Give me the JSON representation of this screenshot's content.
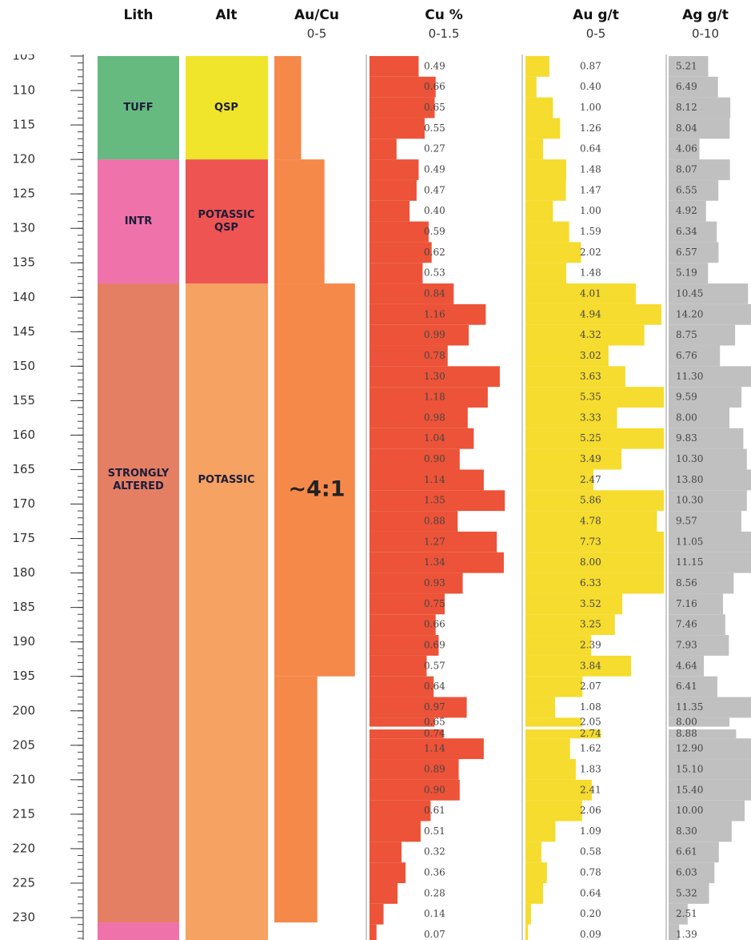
{
  "chart_data": {
    "type": "strip-log",
    "depth_axis": {
      "ylim": [
        104.77,
        233.25
      ],
      "yticks": [
        105,
        110,
        115,
        120,
        125,
        130,
        135,
        140,
        145,
        150,
        155,
        160,
        165,
        170,
        175,
        180,
        185,
        190,
        195,
        200,
        205,
        210,
        215,
        220,
        225,
        230
      ],
      "minor_tick_step": 1
    },
    "samples": {
      "from": [
        105,
        108,
        111,
        114,
        117,
        120,
        123,
        126,
        129,
        132,
        135,
        138,
        141,
        144,
        147,
        150,
        153,
        156,
        159,
        162,
        165,
        168,
        171,
        174,
        177,
        180,
        183,
        186,
        189,
        192,
        195,
        198,
        201,
        202.7,
        204,
        207,
        210,
        213,
        216,
        219,
        222,
        225,
        228,
        231
      ],
      "to": [
        108,
        111,
        114,
        117,
        120,
        123,
        126,
        129,
        132,
        135,
        138,
        141,
        144,
        147,
        150,
        153,
        156,
        159,
        162,
        165,
        168,
        171,
        174,
        177,
        180,
        183,
        186,
        189,
        192,
        195,
        198,
        201,
        202.3,
        204,
        207,
        210,
        213,
        216,
        219,
        222,
        225,
        228,
        231,
        234
      ]
    },
    "tracks": [
      {
        "type": "interval",
        "title": "Lith",
        "intervals": [
          {
            "from": 105,
            "to": 120,
            "label": [
              "TUFF"
            ],
            "color": "#66b97f"
          },
          {
            "from": 120,
            "to": 138,
            "label": [
              "INTR"
            ],
            "color": "#ef72ab"
          },
          {
            "from": 138,
            "to": 230.7,
            "label": [
              "STRONGLY",
              "ALTERED"
            ],
            "color": "#e47f63"
          },
          {
            "from": 230.7,
            "to": 233.25,
            "color": "#ef72ab"
          }
        ]
      },
      {
        "type": "interval",
        "title": "Alt",
        "intervals": [
          {
            "from": 105,
            "to": 120,
            "label": [
              "QSP"
            ],
            "color": "#f0e52a"
          },
          {
            "from": 120,
            "to": 138,
            "label": [
              "POTASSIC",
              "QSP"
            ],
            "color": "#ee5452"
          },
          {
            "from": 138,
            "to": 233.25,
            "label": [
              "POTASSIC"
            ],
            "color": "#f5a262"
          }
        ]
      },
      {
        "type": "ratio",
        "title": "Au/Cu",
        "range_label": "0-5",
        "xlim": [
          0,
          5
        ],
        "color": "#f5894a",
        "annotation": "~4:1",
        "intervals": [
          {
            "from": 105,
            "to": 120,
            "value": 1.5
          },
          {
            "from": 120,
            "to": 138,
            "value": 2.8
          },
          {
            "from": 138,
            "to": 195,
            "value": 4.5
          },
          {
            "from": 195,
            "to": 230.7,
            "value": 2.4
          }
        ]
      },
      {
        "type": "bar",
        "title": "Cu %",
        "range_label": "0-1.5",
        "xlim": [
          0,
          1.5
        ],
        "color": "#ec5338",
        "values": [
          0.49,
          0.66,
          0.65,
          0.55,
          0.27,
          0.49,
          0.47,
          0.4,
          0.59,
          0.62,
          0.53,
          0.84,
          1.16,
          0.99,
          0.78,
          1.3,
          1.18,
          0.98,
          1.04,
          0.9,
          1.14,
          1.35,
          0.88,
          1.27,
          1.34,
          0.93,
          0.75,
          0.66,
          0.69,
          0.57,
          0.64,
          0.97,
          0.65,
          0.74,
          1.14,
          0.89,
          0.9,
          0.61,
          0.51,
          0.32,
          0.36,
          0.28,
          0.14,
          0.07
        ],
        "value_labels": [
          "0.49",
          "0.66",
          "0.65",
          "0.55",
          "0.27",
          "0.49",
          "0.47",
          "0.40",
          "0.59",
          "0.62",
          "0.53",
          "0.84",
          "1.16",
          "0.99",
          "0.78",
          "1.30",
          "1.18",
          "0.98",
          "1.04",
          "0.90",
          "1.14",
          "1.35",
          "0.88",
          "1.27",
          "1.34",
          "0.93",
          "0.75",
          "0.66",
          "0.69",
          "0.57",
          "0.64",
          "0.97",
          "0.65",
          "0.74",
          "1.14",
          "0.89",
          "0.90",
          "0.61",
          "0.51",
          "0.32",
          "0.36",
          "0.28",
          "0.14",
          "0.07"
        ]
      },
      {
        "type": "bar",
        "title": "Au g/t",
        "range_label": "0-5",
        "xlim": [
          0,
          5
        ],
        "color": "#f5dc2e",
        "values": [
          0.87,
          0.4,
          1,
          1.26,
          0.64,
          1.48,
          1.47,
          1,
          1.59,
          2.02,
          1.48,
          4.01,
          4.94,
          4.32,
          3.02,
          3.63,
          5.35,
          3.33,
          5.25,
          3.49,
          2.47,
          5.86,
          4.78,
          7.73,
          8,
          6.33,
          3.52,
          3.25,
          2.39,
          3.84,
          2.07,
          1.08,
          2.05,
          2.74,
          1.62,
          1.83,
          2.41,
          2.06,
          1.09,
          0.58,
          0.78,
          0.64,
          0.2,
          0.09
        ],
        "value_labels": [
          "0.87",
          "0.40",
          "1.00",
          "1.26",
          "0.64",
          "1.48",
          "1.47",
          "1.00",
          "1.59",
          "2.02",
          "1.48",
          "4.01",
          "4.94",
          "4.32",
          "3.02",
          "3.63",
          "5.35",
          "3.33",
          "5.25",
          "3.49",
          "2.47",
          "5.86",
          "4.78",
          "7.73",
          "8.00",
          "6.33",
          "3.52",
          "3.25",
          "2.39",
          "3.84",
          "2.07",
          "1.08",
          "2.05",
          "2.74",
          "1.62",
          "1.83",
          "2.41",
          "2.06",
          "1.09",
          "0.58",
          "0.78",
          "0.64",
          "0.20",
          "0.09"
        ]
      },
      {
        "type": "bar",
        "title": "Ag g/t",
        "range_label": "0-10",
        "xlim": [
          0,
          10
        ],
        "color": "#c0c0c0",
        "values": [
          5.21,
          6.49,
          8.12,
          8.04,
          4.06,
          8.07,
          6.55,
          4.92,
          6.34,
          6.57,
          5.19,
          10.45,
          14.2,
          8.75,
          6.76,
          11.3,
          9.59,
          8,
          9.83,
          10.3,
          13.8,
          10.3,
          9.57,
          11.05,
          11.15,
          8.56,
          7.16,
          7.46,
          7.93,
          4.64,
          6.41,
          11.35,
          8,
          8.88,
          12.9,
          15.1,
          15.4,
          10,
          8.3,
          6.61,
          6.03,
          5.32,
          2.51,
          1.39
        ],
        "value_labels": [
          "5.21",
          "6.49",
          "8.12",
          "8.04",
          "4.06",
          "8.07",
          "6.55",
          "4.92",
          "6.34",
          "6.57",
          "5.19",
          "10.45",
          "14.20",
          "8.75",
          "6.76",
          "11.30",
          "9.59",
          "8.00",
          "9.83",
          "10.30",
          "13.80",
          "10.30",
          "9.57",
          "11.05",
          "11.15",
          "8.56",
          "7.16",
          "7.46",
          "7.93",
          "4.64",
          "6.41",
          "11.35",
          "8.00",
          "8.88",
          "12.90",
          "15.10",
          "15.40",
          "10.00",
          "8.30",
          "6.61",
          "6.03",
          "5.32",
          "2.51",
          "1.39"
        ]
      }
    ]
  }
}
